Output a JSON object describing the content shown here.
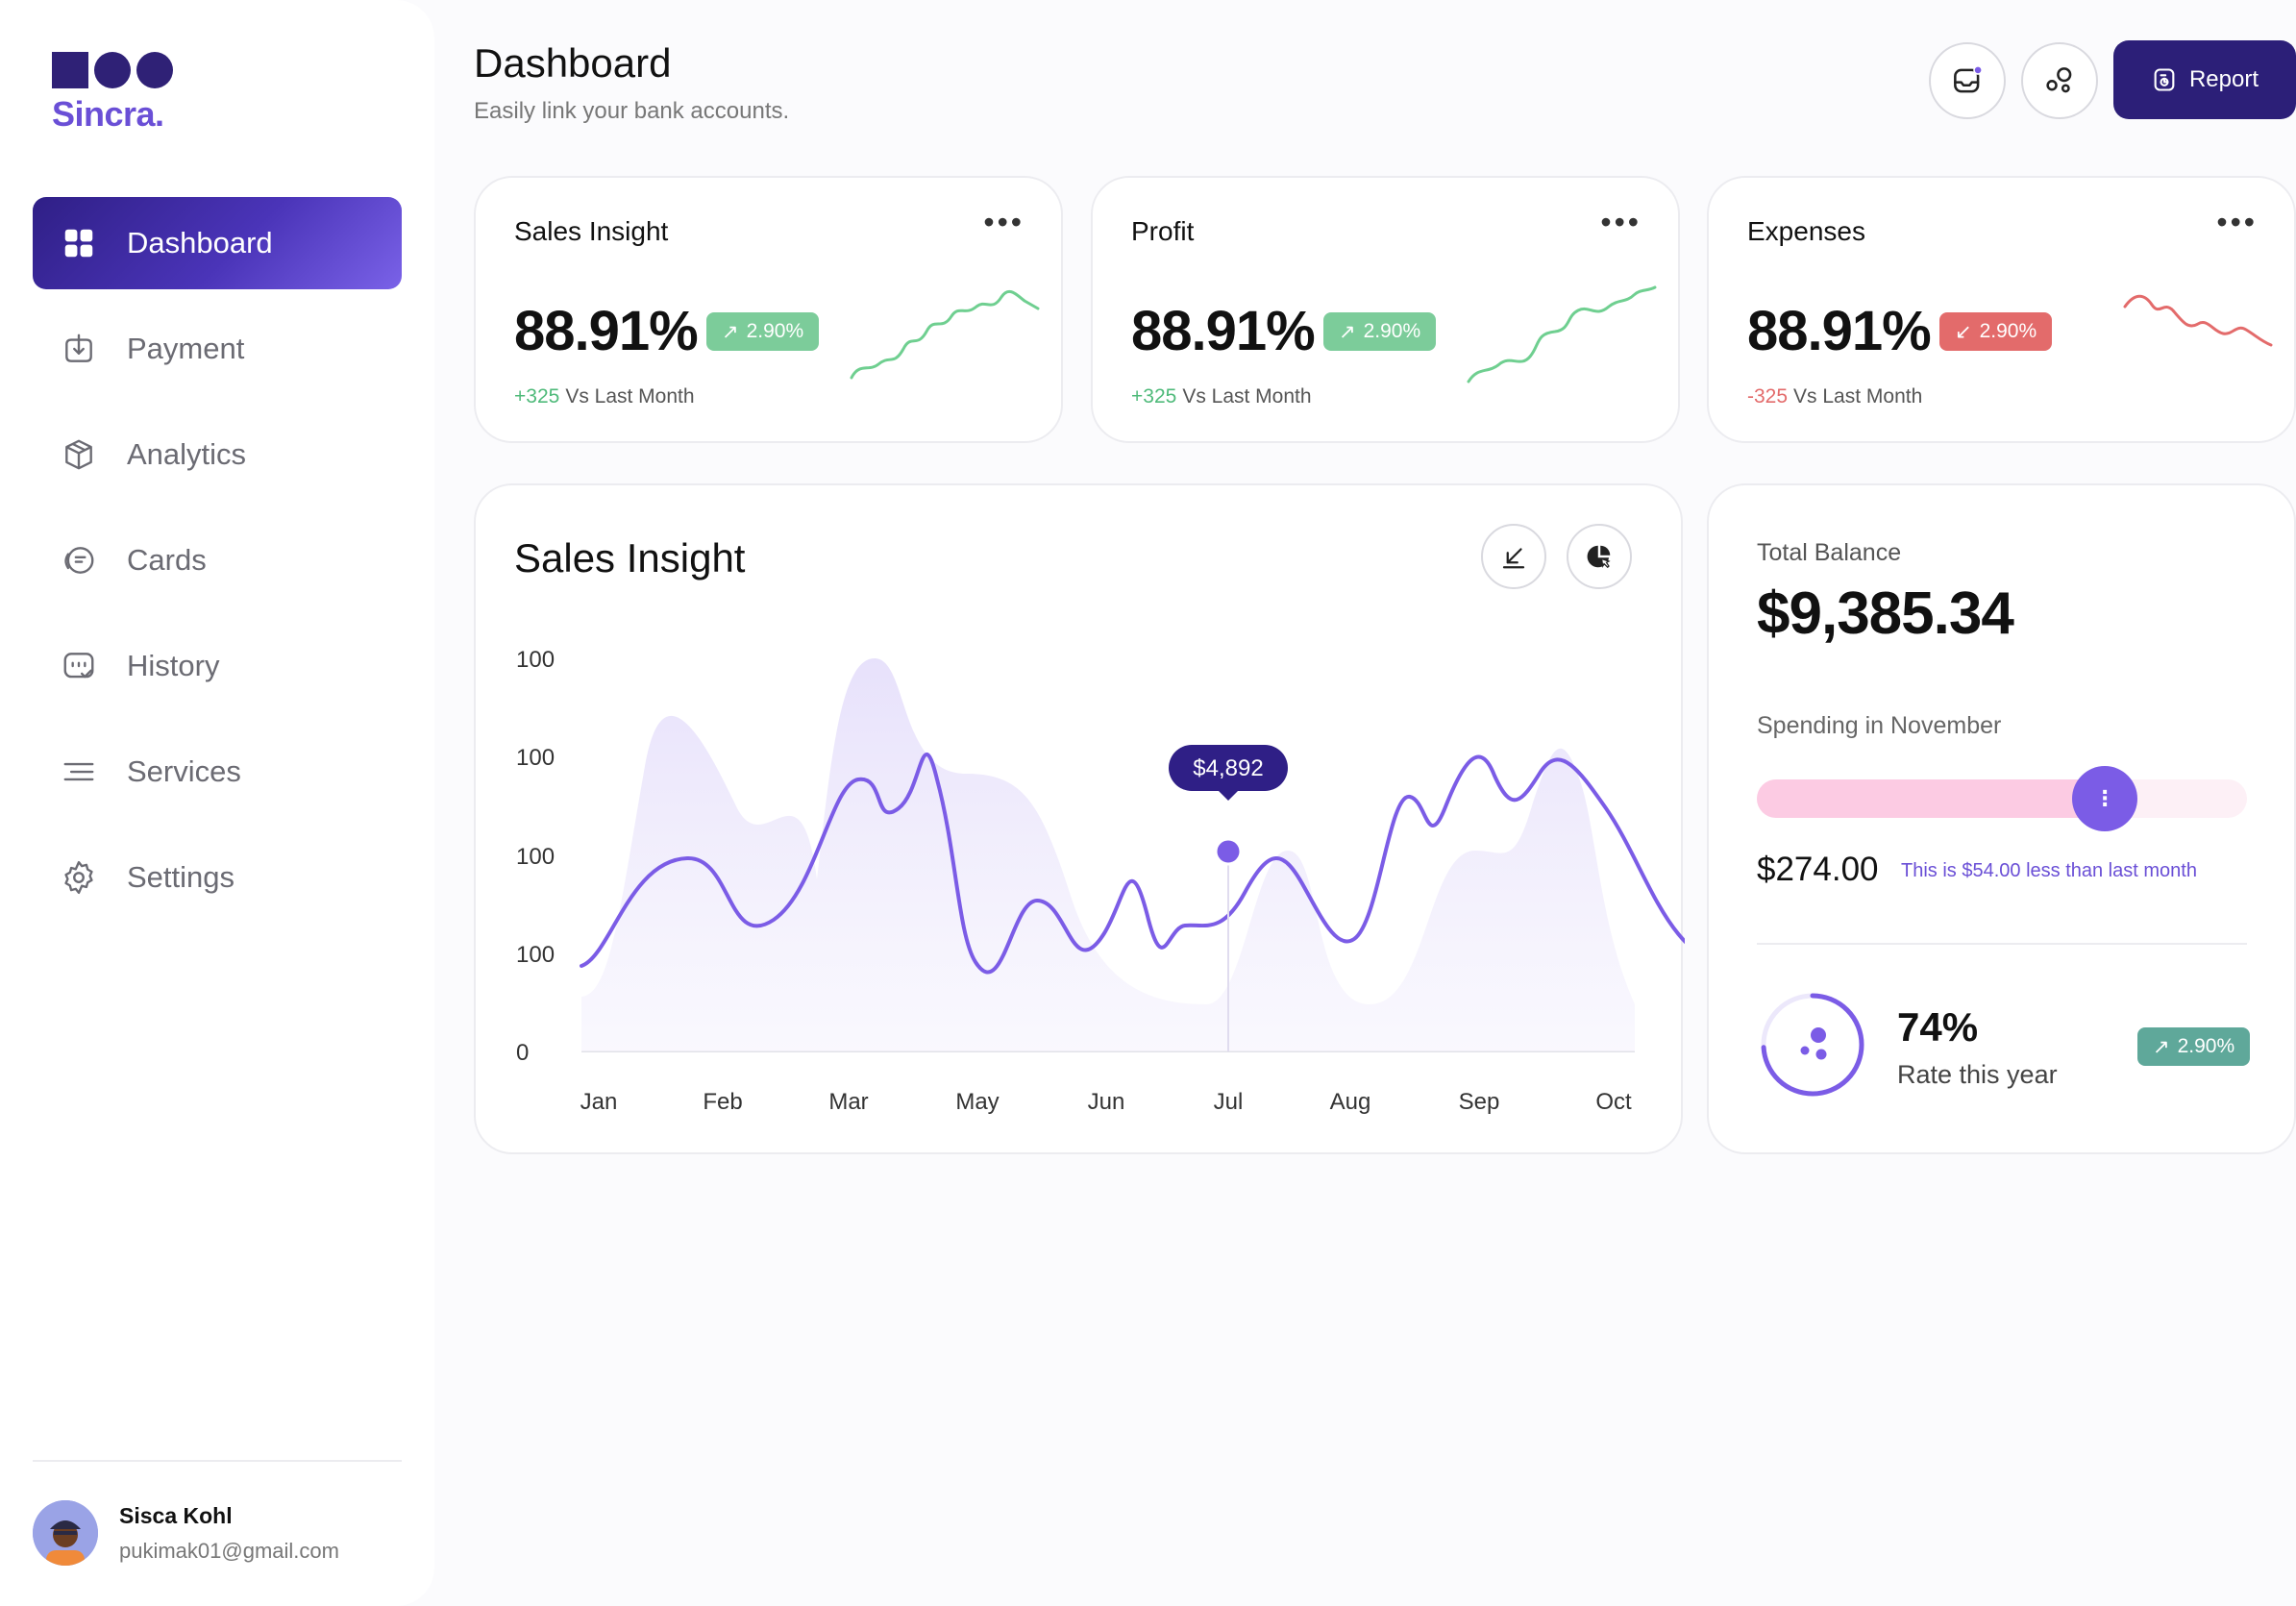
{
  "brand": {
    "name": "Sincra."
  },
  "sidebar": {
    "items": [
      {
        "label": "Dashboard",
        "icon": "dashboard-grid-icon",
        "active": true
      },
      {
        "label": "Payment",
        "icon": "payment-icon",
        "active": false
      },
      {
        "label": "Analytics",
        "icon": "analytics-box-icon",
        "active": false
      },
      {
        "label": "Cards",
        "icon": "cards-icon",
        "active": false
      },
      {
        "label": "History",
        "icon": "history-icon",
        "active": false
      },
      {
        "label": "Services",
        "icon": "services-icon",
        "active": false
      },
      {
        "label": "Settings",
        "icon": "settings-gear-icon",
        "active": false
      }
    ]
  },
  "user": {
    "name": "Sisca Kohl",
    "email": "pukimak01@gmail.com"
  },
  "header": {
    "title": "Dashboard",
    "subtitle": "Easily link your bank accounts.",
    "report_label": "Report"
  },
  "kpis": [
    {
      "title": "Sales Insight",
      "value": "88.91%",
      "badge": "2.90%",
      "badge_direction": "up",
      "badge_color": "#7ccc9a",
      "delta": "+325",
      "delta_color": "#4fba7a",
      "foot": "Vs Last Month",
      "spark_color": "#6fcf90"
    },
    {
      "title": "Profit",
      "value": "88.91%",
      "badge": "2.90%",
      "badge_direction": "up",
      "badge_color": "#7ccc9a",
      "delta": "+325",
      "delta_color": "#4fba7a",
      "foot": "Vs Last Month",
      "spark_color": "#6fcf90"
    },
    {
      "title": "Expenses",
      "value": "88.91%",
      "badge": "2.90%",
      "badge_direction": "down",
      "badge_color": "#e36b6b",
      "delta": "-325",
      "delta_color": "#e36b6b",
      "foot": "Vs Last Month",
      "spark_color": "#e36b6b"
    }
  ],
  "sales_chart": {
    "title": "Sales Insight",
    "tooltip": "$4,892",
    "line_color": "#7b5ce6"
  },
  "chart_data": {
    "type": "line",
    "title": "Sales Insight",
    "categories": [
      "Jan",
      "Feb",
      "Mar",
      "May",
      "Jun",
      "Jul",
      "Aug",
      "Sep",
      "Oct"
    ],
    "y_tick_labels": [
      "100",
      "100",
      "100",
      "100",
      "0"
    ],
    "highlight": {
      "category": "Jul",
      "label": "$4,892"
    }
  },
  "balance": {
    "label": "Total Balance",
    "value": "$9,385.34",
    "spending_label": "Spending in November",
    "spending_fraction": 0.71,
    "spending_amount": "$274.00",
    "spending_note": "This is $54.00 less than last month",
    "rate_value": "74%",
    "rate_label": "Rate this year",
    "rate_badge": "2.90%",
    "rate_fraction": 0.74
  }
}
